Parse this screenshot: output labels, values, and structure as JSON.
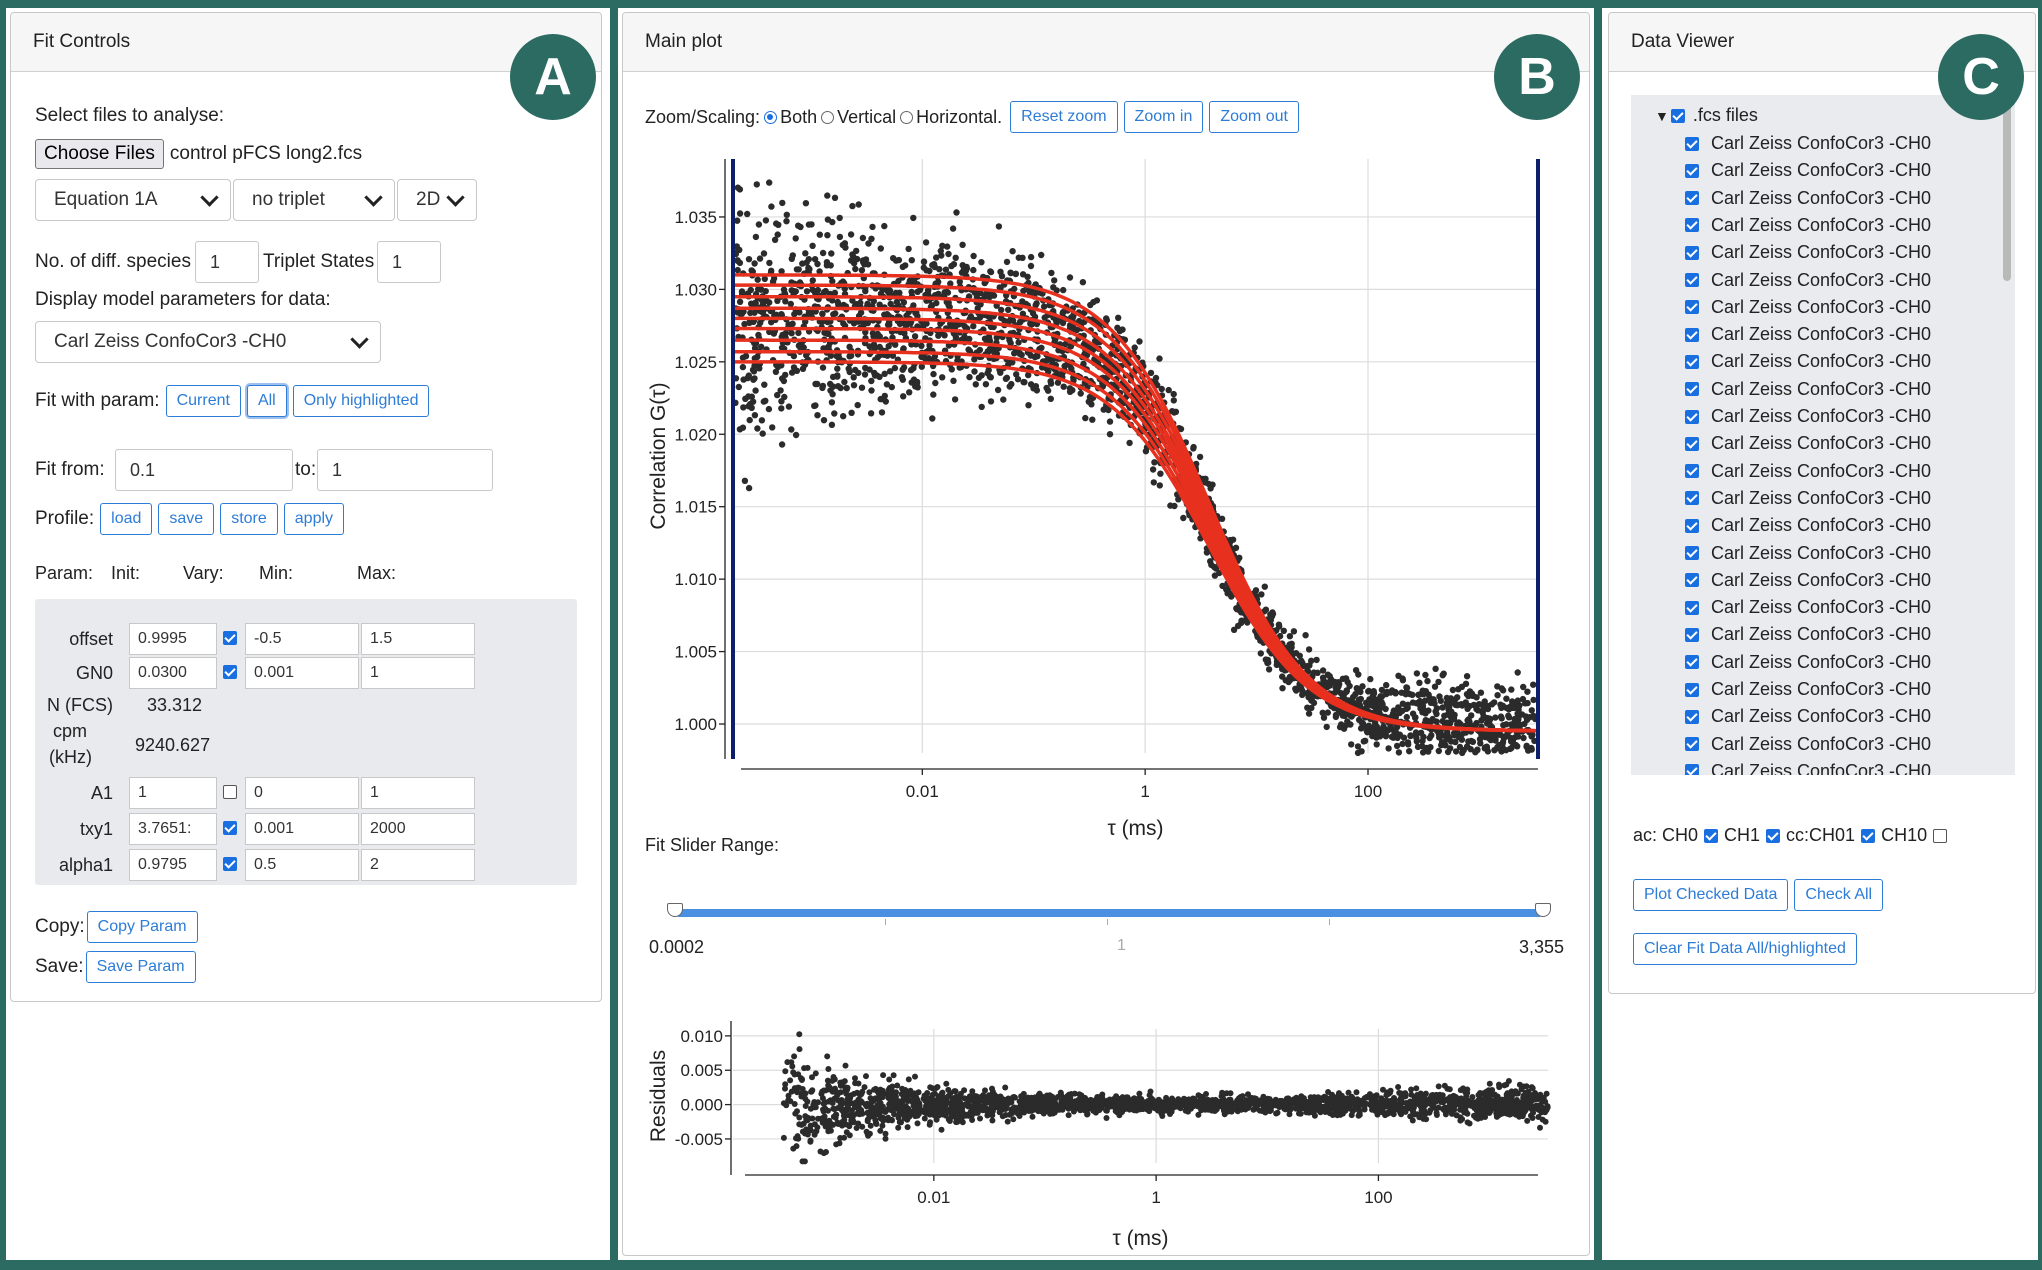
{
  "fit_controls": {
    "header": "Fit Controls",
    "badge": "A",
    "select_files_label": "Select files to analyse:",
    "choose_files_label": "Choose Files",
    "file_name": "control pFCS long2.fcs",
    "equation": "Equation 1A",
    "triplet_mode": "no triplet",
    "dimension": "2D",
    "diff_species_label": "No. of diff. species",
    "diff_species_value": "1",
    "triplet_states_label": "Triplet States",
    "triplet_states_value": "1",
    "display_params_label": "Display model parameters for data:",
    "display_params_value": "Carl Zeiss ConfoCor3 -CH0",
    "fit_with_label": "Fit with param:",
    "fit_with_buttons": [
      "Current",
      "All",
      "Only highlighted"
    ],
    "fit_from_label": "Fit from:",
    "fit_from_value": "0.1",
    "fit_to_label": "to:",
    "fit_to_value": "1",
    "profile_label": "Profile:",
    "profile_buttons": [
      "load",
      "save",
      "store",
      "apply"
    ],
    "param_headers": [
      "Param:",
      "Init:",
      "Vary:",
      "Min:",
      "Max:"
    ],
    "params": [
      {
        "name": "offset",
        "init": "0.9995",
        "vary": true,
        "min": "-0.5",
        "max": "1.5"
      },
      {
        "name": "GN0",
        "init": "0.0300",
        "vary": true,
        "min": "0.001",
        "max": "1"
      },
      {
        "name": "A1",
        "init": "1",
        "vary": false,
        "min": "0",
        "max": "1"
      },
      {
        "name": "txy1",
        "init": "3.7651:",
        "vary": true,
        "min": "0.001",
        "max": "2000"
      },
      {
        "name": "alpha1",
        "init": "0.9795",
        "vary": true,
        "min": "0.5",
        "max": "2"
      }
    ],
    "n_fcs_label": "N (FCS)",
    "n_fcs_value": "33.312",
    "cpm_label_1": "cpm",
    "cpm_label_2": "(kHz)",
    "cpm_value": "9240.627",
    "copy_label": "Copy:",
    "copy_button": "Copy Param",
    "save_label": "Save:",
    "save_button": "Save Param"
  },
  "main_plot": {
    "header": "Main plot",
    "badge": "B",
    "zoom_label": "Zoom/Scaling:",
    "zoom_options": [
      "Both",
      "Vertical",
      "Horizontal."
    ],
    "zoom_selected": "Both",
    "zoom_buttons": [
      "Reset zoom",
      "Zoom in",
      "Zoom out"
    ],
    "slider_label": "Fit Slider Range:",
    "slider_min": "0.0002",
    "slider_mid": "1",
    "slider_max": "3,355"
  },
  "data_viewer": {
    "header": "Data Viewer",
    "badge": "C",
    "root_label": ".fcs files",
    "file_label": "Carl Zeiss ConfoCor3 -CH0",
    "file_count_visible": 24,
    "channel_filters": [
      {
        "label": "ac: CH0",
        "checked": true
      },
      {
        "label": "CH1",
        "checked": true
      },
      {
        "label": "cc:CH01",
        "checked": true
      },
      {
        "label": "CH10",
        "checked": false
      }
    ],
    "buttons": [
      "Plot Checked Data",
      "Check All"
    ],
    "clear_button": "Clear Fit Data All/highlighted"
  },
  "chart_data": [
    {
      "type": "scatter",
      "name": "main-correlation-plot",
      "xlabel": "τ (ms)",
      "ylabel": "Correlation G(τ)",
      "x_scale": "log",
      "xlim": [
        0.0002,
        3355
      ],
      "ylim": [
        0.998,
        1.039
      ],
      "x_ticks": [
        0.01,
        1,
        100
      ],
      "x_tick_labels": [
        "0.01",
        "1",
        "100"
      ],
      "y_ticks": [
        1.0,
        1.005,
        1.01,
        1.015,
        1.02,
        1.025,
        1.03,
        1.035
      ],
      "y_tick_labels": [
        "1.000",
        "1.005",
        "1.010",
        "1.015",
        "1.020",
        "1.025",
        "1.030",
        "1.035"
      ],
      "grid": true,
      "series": [
        {
          "kind": "data-points",
          "color": "#2b2b2b"
        },
        {
          "kind": "fit-curves",
          "color": "#e8301f",
          "offset": 0.9995,
          "amplitudes": [
            0.0255,
            0.0262,
            0.027,
            0.0278,
            0.0285,
            0.0292,
            0.03,
            0.0308,
            0.0315
          ],
          "txy": 3.7651,
          "alpha": 0.9795
        }
      ],
      "fit_range_markers": [
        0.0002,
        3355
      ]
    },
    {
      "type": "scatter",
      "name": "residuals-plot",
      "xlabel": "τ (ms)",
      "ylabel": "Residuals",
      "x_scale": "log",
      "xlim": [
        0.0002,
        3355
      ],
      "ylim": [
        -0.0085,
        0.011
      ],
      "x_ticks": [
        0.01,
        1,
        100
      ],
      "x_tick_labels": [
        "0.01",
        "1",
        "100"
      ],
      "y_ticks": [
        0.01,
        0.005,
        0.0,
        -0.005
      ],
      "y_tick_labels": [
        "0.010",
        "0.005",
        "0.000",
        "-0.005"
      ],
      "grid": true
    }
  ]
}
